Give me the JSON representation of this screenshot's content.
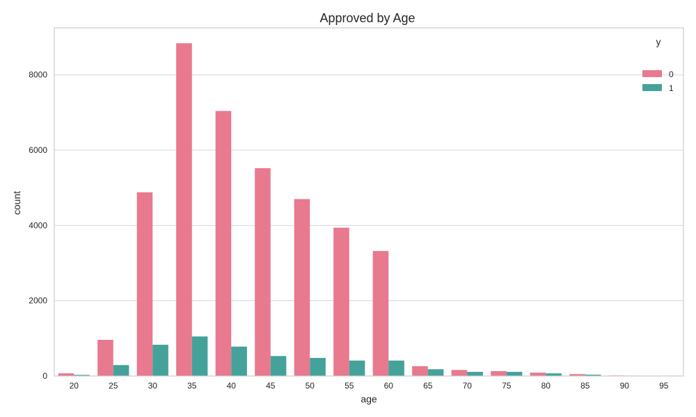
{
  "chart_data": {
    "type": "bar",
    "title": "Approved by Age",
    "xlabel": "age",
    "ylabel": "count",
    "ylim": [
      0,
      9250
    ],
    "yticks": [
      0,
      2000,
      4000,
      6000,
      8000
    ],
    "grid": true,
    "legend": {
      "title": "y",
      "placement": "top-right"
    },
    "categories": [
      "20",
      "25",
      "30",
      "35",
      "40",
      "45",
      "50",
      "55",
      "60",
      "65",
      "70",
      "75",
      "80",
      "85",
      "90",
      "95"
    ],
    "series": [
      {
        "name": "0",
        "color": "#e8798e",
        "values": [
          70,
          960,
          4880,
          8840,
          7040,
          5520,
          4700,
          3940,
          3320,
          260,
          160,
          130,
          90,
          50,
          15,
          8
        ]
      },
      {
        "name": "1",
        "color": "#44a29a",
        "values": [
          30,
          290,
          830,
          1050,
          780,
          530,
          480,
          410,
          410,
          180,
          110,
          110,
          70,
          35,
          10,
          10
        ]
      }
    ]
  }
}
